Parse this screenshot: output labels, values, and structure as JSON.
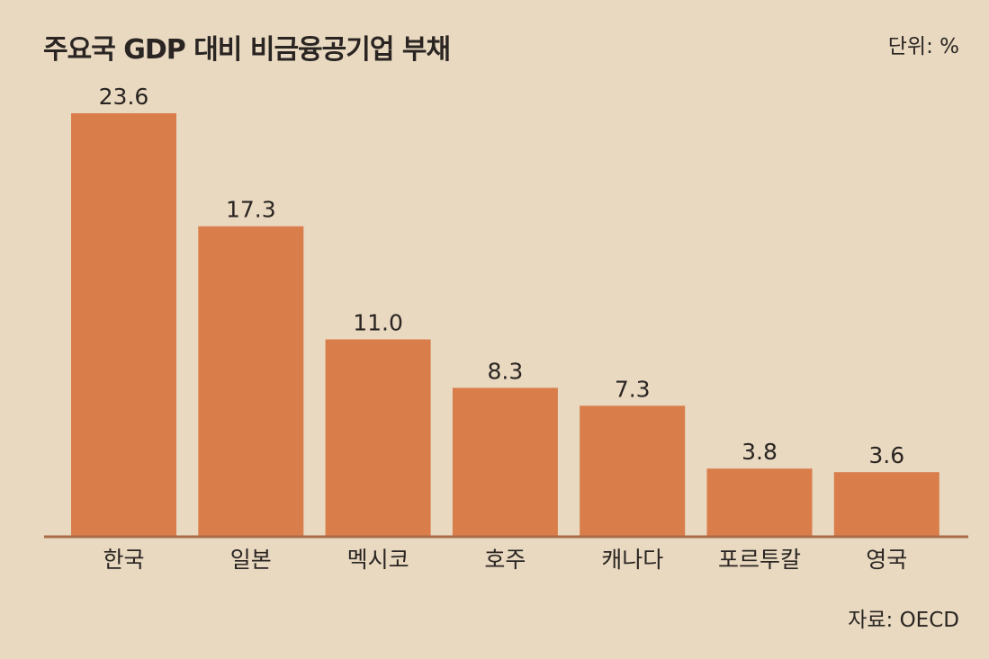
{
  "title": "주요국 GDP 대비 비금융공기업 부채",
  "unit": "단위: %",
  "source": "자료: OECD",
  "colors": {
    "background": "#e9d9c1",
    "bar": "#d97d4b",
    "baseline": "#a96b48",
    "text": "#2a2522"
  },
  "chart_data": {
    "type": "bar",
    "categories": [
      "한국",
      "일본",
      "멕시코",
      "호주",
      "캐나다",
      "포르투칼",
      "영국"
    ],
    "values": [
      23.6,
      17.3,
      11.0,
      8.3,
      7.3,
      3.8,
      3.6
    ],
    "value_labels": [
      "23.6",
      "17.3",
      "11.0",
      "8.3",
      "7.3",
      "3.8",
      "3.6"
    ],
    "ylim": [
      0,
      23.6
    ],
    "grid": false,
    "legend": "none"
  }
}
